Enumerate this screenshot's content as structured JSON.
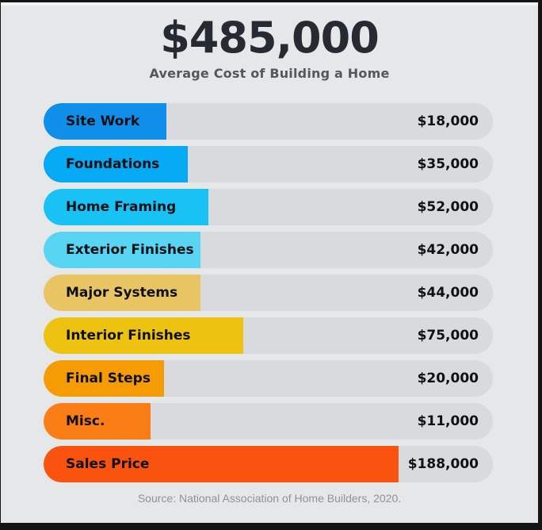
{
  "header": {
    "title": "$485,000",
    "subtitle": "Average Cost of Building a Home"
  },
  "source_note": "Source: National Association of Home Builders, 2020.",
  "colors": {
    "background": "#e6e7e8",
    "track": "#d8dade",
    "title_text": "#262b33",
    "subtitle_text": "#54575c",
    "bar_text": "#0e1013",
    "source_text": "#8f9296",
    "frame": "#141414"
  },
  "chart_data": {
    "type": "bar",
    "orientation": "horizontal",
    "title": "$485,000",
    "subtitle": "Average Cost of Building a Home",
    "categories": [
      "Site Work",
      "Foundations",
      "Home Framing",
      "Exterior Finishes",
      "Major Systems",
      "Interior Finishes",
      "Final Steps",
      "Misc.",
      "Sales Price"
    ],
    "values": [
      18000,
      35000,
      52000,
      42000,
      44000,
      75000,
      20000,
      11000,
      188000
    ],
    "value_labels": [
      "$18,000",
      "$35,000",
      "$52,000",
      "$42,000",
      "$44,000",
      "$75,000",
      "$20,000",
      "$11,000",
      "$188,000"
    ],
    "bar_colors": [
      "#0f8fea",
      "#06a9f4",
      "#19c2f5",
      "#58d5f2",
      "#e8c463",
      "#eec211",
      "#f59c04",
      "#fa7d15",
      "#f9530f"
    ],
    "bar_width_pct": [
      27.3,
      32.1,
      36.7,
      34.9,
      34.9,
      44.4,
      26.8,
      23.8,
      79.0
    ],
    "grid": false,
    "legend": "none",
    "annotation": "Source: National Association of Home Builders, 2020."
  }
}
